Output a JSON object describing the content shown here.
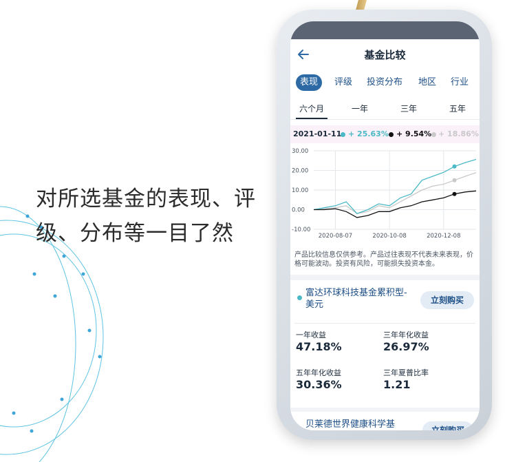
{
  "tagline": {
    "line1": "对所选基金的表现、评",
    "line2": "级、分布等一目了然"
  },
  "app": {
    "title": "基金比较",
    "tabs": [
      "表现",
      "评级",
      "投资分布",
      "地区",
      "行业"
    ],
    "active_tab": "表现",
    "periods": [
      "六个月",
      "一年",
      "三年",
      "五年"
    ],
    "active_period": "六个月",
    "legend": {
      "date": "2021-01-11",
      "items": [
        {
          "value": "+ 25.63%",
          "color": "#4bb9c6"
        },
        {
          "value": "+ 9.54%",
          "color": "#111111"
        },
        {
          "value": "+ 18.86%",
          "color": "#c9c9c9"
        }
      ]
    },
    "disclaimer": "产品比较信息仅供参考。产品过往表现不代表未来表现，价格可能波动。投资有风险，可能损失投资本金。",
    "funds": [
      {
        "name": "富达环球科技基金累积型-美元",
        "buy_label": "立刻购买",
        "metrics": [
          {
            "label": "一年收益",
            "value": "47.18%"
          },
          {
            "label": "三年年化收益",
            "value": "26.97%"
          },
          {
            "label": "五年年化收益",
            "value": "30.36%"
          },
          {
            "label": "三年夏普比率",
            "value": "1.21"
          }
        ]
      },
      {
        "name": "贝莱德世界健康科学基",
        "buy_label": "立刻购买"
      }
    ]
  },
  "icons": {
    "back": "back-arrow-icon",
    "fund_marker": "dot-icon"
  },
  "colors": {
    "accent": "#2d6aa5",
    "series1": "#4bb9c6",
    "series2": "#111111",
    "series3": "#c9c9c9"
  },
  "chart_data": {
    "type": "line",
    "x": [
      "2020-07-11",
      "2020-07-25",
      "2020-08-07",
      "2020-08-21",
      "2020-09-04",
      "2020-09-18",
      "2020-10-02",
      "2020-10-08",
      "2020-10-22",
      "2020-11-05",
      "2020-11-19",
      "2020-12-03",
      "2020-12-08",
      "2020-12-22",
      "2021-01-05",
      "2021-01-11"
    ],
    "series": [
      {
        "values": [
          0,
          1,
          2,
          4,
          -2,
          0,
          3,
          2,
          6,
          8,
          15,
          17,
          19,
          22,
          24,
          25.63
        ]
      },
      {
        "values": [
          0,
          0,
          0.5,
          -1,
          -4,
          -3,
          -1,
          -1,
          1,
          2,
          4,
          5,
          6,
          8,
          9,
          9.54
        ]
      },
      {
        "values": [
          0,
          0.5,
          1,
          2,
          -2,
          -1,
          2,
          1,
          4,
          7,
          10,
          12,
          13,
          15,
          17,
          18.86
        ]
      }
    ],
    "xticks": [
      "2020-08-07",
      "2020-10-08",
      "2020-12-08"
    ],
    "yticks": [
      "30.00",
      "20.00",
      "10.00",
      "0.00",
      "-10.00"
    ],
    "ylim": [
      -10,
      30
    ],
    "grid": true
  }
}
